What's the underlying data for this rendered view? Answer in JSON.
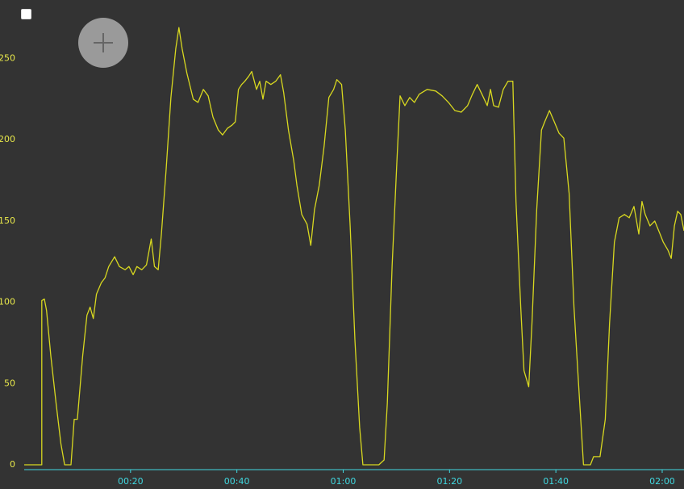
{
  "chart_data": {
    "type": "line",
    "x": [
      0,
      3.3,
      3.3,
      3.8,
      4.2,
      5.0,
      6.0,
      6.9,
      7.6,
      8.8,
      9.4,
      10.0,
      11.0,
      11.8,
      12.4,
      13.0,
      13.6,
      14.5,
      15.2,
      15.9,
      17.0,
      17.9,
      19.0,
      19.7,
      20.5,
      21.2,
      22.1,
      23.0,
      23.9,
      24.5,
      25.2,
      25.8,
      26.7,
      27.6,
      28.5,
      29.1,
      29.7,
      30.6,
      31.8,
      32.7,
      33.7,
      34.6,
      35.5,
      36.5,
      37.3,
      38.2,
      39.1,
      39.7,
      40.3,
      40.9,
      41.5,
      42.2,
      42.8,
      43.7,
      44.3,
      44.9,
      45.5,
      46.4,
      47.3,
      48.2,
      48.8,
      49.7,
      50.7,
      51.3,
      52.2,
      53.2,
      53.9,
      54.6,
      55.5,
      56.4,
      57.3,
      58.2,
      58.8,
      59.7,
      60.4,
      61.3,
      62.2,
      63.1,
      63.7,
      66.7,
      67.7,
      68.3,
      69.2,
      70.1,
      70.7,
      71.6,
      72.5,
      73.4,
      74.3,
      75.8,
      77.4,
      78.6,
      79.8,
      81.0,
      82.2,
      83.4,
      84.3,
      85.2,
      86.1,
      87.1,
      87.7,
      88.3,
      89.2,
      90.1,
      91.0,
      91.9,
      92.5,
      93.4,
      94.0,
      94.9,
      95.5,
      96.4,
      97.3,
      97.9,
      98.8,
      99.7,
      100.6,
      101.5,
      102.5,
      103.4,
      104.3,
      105.2,
      106.5,
      107.1,
      108.3,
      109.3,
      110.1,
      111.0,
      111.9,
      112.9,
      113.8,
      114.7,
      115.6,
      116.2,
      116.8,
      117.7,
      118.6,
      119.6,
      120.2,
      121.1,
      121.7,
      122.3,
      122.9,
      123.5,
      124.1
    ],
    "series": [
      {
        "color": "#d8d820",
        "values": [
          0,
          0,
          101,
          102,
          95,
          67,
          38,
          13,
          0,
          0,
          28,
          28,
          67,
          92,
          97,
          90,
          105,
          112,
          115,
          122,
          128,
          122,
          120,
          122,
          117,
          122,
          120,
          123,
          139,
          122,
          120,
          142,
          182,
          226,
          256,
          269,
          256,
          241,
          225,
          223,
          231,
          227,
          214,
          206,
          203,
          207,
          209,
          211,
          231,
          234,
          236,
          239,
          242,
          231,
          236,
          225,
          236,
          234,
          236,
          240,
          229,
          206,
          187,
          172,
          154,
          148,
          135,
          157,
          172,
          196,
          226,
          231,
          237,
          234,
          206,
          147,
          77,
          23,
          0,
          0,
          3,
          38,
          122,
          187,
          227,
          221,
          226,
          223,
          228,
          231,
          230,
          227,
          223,
          218,
          217,
          221,
          228,
          234,
          228,
          221,
          231,
          221,
          220,
          231,
          236,
          236,
          162,
          97,
          58,
          48,
          87,
          157,
          206,
          211,
          218,
          211,
          204,
          201,
          167,
          97,
          48,
          0,
          0,
          5,
          5,
          28,
          87,
          137,
          152,
          154,
          152,
          159,
          142,
          162,
          154,
          147,
          150,
          142,
          137,
          132,
          127,
          147,
          156,
          154,
          144
        ]
      }
    ],
    "xlim": [
      0,
      124.1
    ],
    "ylim": [
      0,
      286
    ],
    "xticks": [
      {
        "value": 20,
        "label": "00:20"
      },
      {
        "value": 40,
        "label": "00:40"
      },
      {
        "value": 60,
        "label": "01:00"
      },
      {
        "value": 80,
        "label": "01:20"
      },
      {
        "value": 100,
        "label": "01:40"
      },
      {
        "value": 120,
        "label": "02:00"
      }
    ],
    "yticks": [
      0,
      50,
      100,
      150,
      200,
      250
    ]
  }
}
